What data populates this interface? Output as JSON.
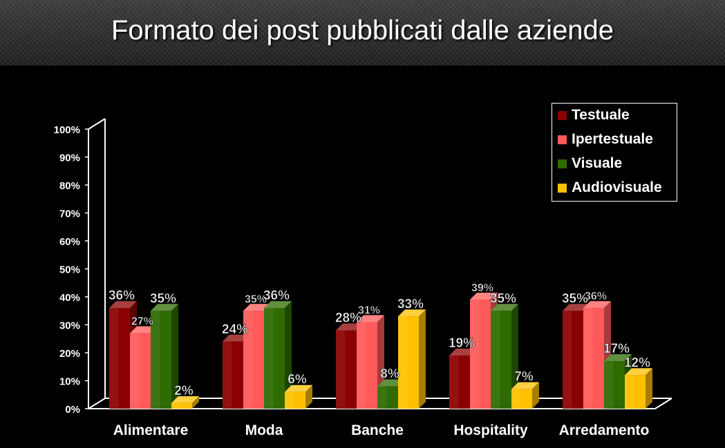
{
  "slide": {
    "title": "Formato dei post pubblicati dalle aziende"
  },
  "chart_data": {
    "type": "bar",
    "title": "",
    "xlabel": "",
    "ylabel": "",
    "ylim": [
      0,
      100
    ],
    "y_ticks": [
      "0%",
      "10%",
      "20%",
      "30%",
      "40%",
      "50%",
      "60%",
      "70%",
      "80%",
      "90%",
      "100%"
    ],
    "categories": [
      "Alimentare",
      "Moda",
      "Banche",
      "Hospitality",
      "Arredamento"
    ],
    "series": [
      {
        "name": "Testuale",
        "color": "#8b0000",
        "values": [
          36,
          24,
          28,
          19,
          35
        ],
        "labels": [
          "36%",
          "24%",
          "28%",
          "19%",
          "35%"
        ]
      },
      {
        "name": "Ipertestuale",
        "color": "#ff5a5a",
        "values": [
          27,
          35,
          31,
          39,
          36
        ],
        "labels": [
          "27%",
          "35%",
          "31%",
          "39%",
          "36%"
        ]
      },
      {
        "name": "Visuale",
        "color": "#2e6b00",
        "values": [
          35,
          36,
          8,
          35,
          17
        ],
        "labels": [
          "35%",
          "36%",
          "8%",
          "35%",
          "17%"
        ]
      },
      {
        "name": "Audiovisuale",
        "color": "#ffc000",
        "values": [
          2,
          6,
          33,
          7,
          12
        ],
        "labels": [
          "2%",
          "6%",
          "33%",
          "7%",
          "12%"
        ]
      }
    ],
    "legend_position": "top-right",
    "grid": false
  }
}
